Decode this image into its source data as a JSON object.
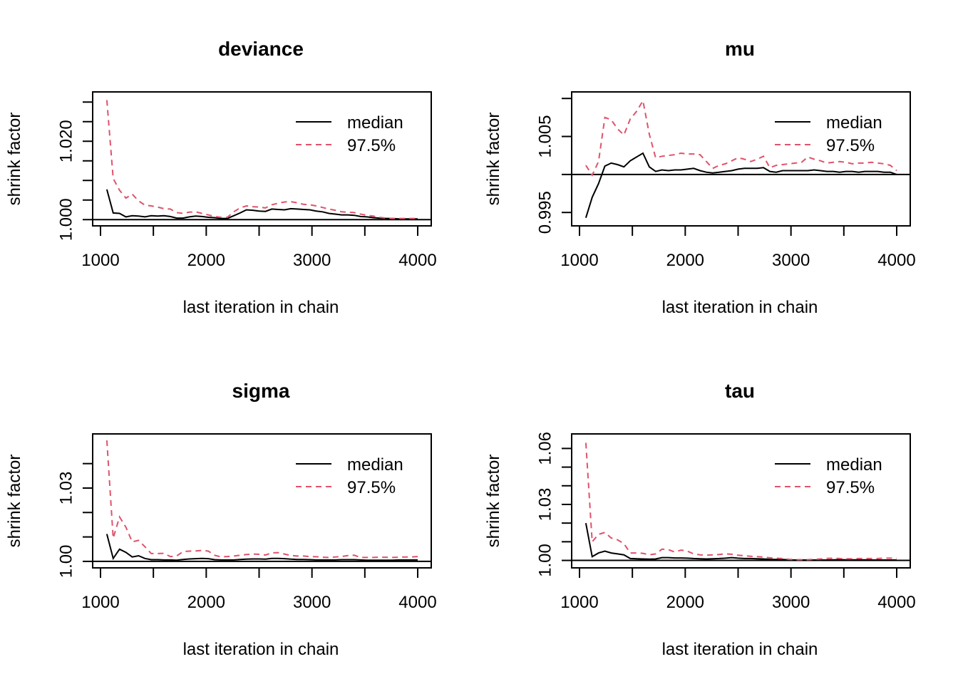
{
  "figure": {
    "xlabel": "last iteration in chain",
    "ylabel": "shrink factor",
    "legend_labels": [
      "median",
      "97.5%"
    ],
    "colors": {
      "median": "#000000",
      "upper": "#DF536B",
      "axis": "#000000"
    }
  },
  "chart_data": [
    {
      "type": "line",
      "title": "deviance",
      "xlabel": "last iteration in chain",
      "ylabel": "shrink factor",
      "legend": "top-right",
      "xlim": [
        1050,
        4000
      ],
      "ylim": [
        0.9995,
        1.0315
      ],
      "x_ticks": [
        1000,
        2000,
        3000,
        4000
      ],
      "x_tick_labels": [
        "1000",
        "2000",
        "3000",
        "4000"
      ],
      "y_ticks": [
        1.0,
        1.005,
        1.01,
        1.015,
        1.02,
        1.025,
        1.03
      ],
      "y_tick_labels": [
        "1.000",
        "",
        "",
        "",
        "1.020",
        "",
        ""
      ],
      "reference_line": 1.0,
      "x": [
        1060,
        1120,
        1180,
        1240,
        1300,
        1360,
        1420,
        1480,
        1540,
        1600,
        1660,
        1720,
        1780,
        1840,
        1900,
        1960,
        2020,
        2080,
        2140,
        2200,
        2260,
        2320,
        2380,
        2440,
        2500,
        2560,
        2620,
        2680,
        2740,
        2800,
        2860,
        2920,
        2980,
        3040,
        3100,
        3160,
        3220,
        3280,
        3340,
        3400,
        3460,
        3520,
        3580,
        3640,
        3700,
        3760,
        3820,
        3880,
        3940,
        4000
      ],
      "series": [
        {
          "name": "median",
          "style": "solid",
          "color": "#000000",
          "values": [
            1.0077,
            1.0017,
            1.0016,
            1.0007,
            1.001,
            1.0009,
            1.0007,
            1.001,
            1.0009,
            1.001,
            1.0008,
            1.0004,
            1.0004,
            1.0007,
            1.0009,
            1.0008,
            1.0006,
            1.0005,
            1.0003,
            1.0003,
            1.001,
            1.0017,
            1.0025,
            1.0024,
            1.0022,
            1.0021,
            1.0027,
            1.0026,
            1.0025,
            1.0028,
            1.0027,
            1.0026,
            1.0025,
            1.0022,
            1.002,
            1.0016,
            1.0014,
            1.0012,
            1.0012,
            1.0011,
            1.0008,
            1.0007,
            1.0005,
            1.0004,
            1.0003,
            1.0003,
            1.0002,
            1.0002,
            1.0002,
            1.0002
          ]
        },
        {
          "name": "97.5%",
          "style": "dashed",
          "color": "#DF536B",
          "values": [
            1.0305,
            1.0105,
            1.0075,
            1.0055,
            1.0065,
            1.0048,
            1.0037,
            1.0035,
            1.0032,
            1.0028,
            1.0027,
            1.0018,
            1.0016,
            1.0019,
            1.002,
            1.0016,
            1.0012,
            1.0008,
            1.0006,
            1.0006,
            1.002,
            1.003,
            1.0035,
            1.0033,
            1.0032,
            1.003,
            1.0038,
            1.0042,
            1.0045,
            1.0046,
            1.0043,
            1.0039,
            1.0038,
            1.0035,
            1.0031,
            1.0027,
            1.0024,
            1.002,
            1.0019,
            1.0018,
            1.0014,
            1.0011,
            1.0009,
            1.0006,
            1.0004,
            1.0003,
            1.0003,
            1.0003,
            1.0003,
            1.0003
          ]
        }
      ]
    },
    {
      "type": "line",
      "title": "mu",
      "xlabel": "last iteration in chain",
      "ylabel": "shrink factor",
      "legend": "top-right",
      "xlim": [
        1050,
        4000
      ],
      "ylim": [
        0.9938,
        1.0103
      ],
      "x_ticks": [
        1000,
        2000,
        3000,
        4000
      ],
      "x_tick_labels": [
        "1000",
        "2000",
        "3000",
        "4000"
      ],
      "y_ticks": [
        0.995,
        1.0,
        1.005,
        1.01
      ],
      "y_tick_labels": [
        "0.995",
        "",
        "1.005",
        ""
      ],
      "reference_line": 1.0,
      "x": [
        1060,
        1120,
        1180,
        1240,
        1300,
        1360,
        1420,
        1480,
        1540,
        1600,
        1660,
        1720,
        1780,
        1840,
        1900,
        1960,
        2020,
        2080,
        2140,
        2200,
        2260,
        2320,
        2380,
        2440,
        2500,
        2560,
        2620,
        2680,
        2740,
        2800,
        2860,
        2920,
        2980,
        3040,
        3100,
        3160,
        3220,
        3280,
        3340,
        3400,
        3460,
        3520,
        3580,
        3640,
        3700,
        3760,
        3820,
        3880,
        3940,
        4000
      ],
      "series": [
        {
          "name": "median",
          "style": "solid",
          "color": "#000000",
          "values": [
            0.9943,
            0.997,
            0.9988,
            1.0011,
            1.0015,
            1.0013,
            1.001,
            1.0018,
            1.0023,
            1.0028,
            1.001,
            1.0004,
            1.0006,
            1.0005,
            1.0006,
            1.0006,
            1.0007,
            1.0008,
            1.0005,
            1.0003,
            1.0002,
            1.0003,
            1.0004,
            1.0005,
            1.0007,
            1.0008,
            1.0008,
            1.0008,
            1.0009,
            1.0004,
            1.0003,
            1.0005,
            1.0005,
            1.0005,
            1.0005,
            1.0005,
            1.0006,
            1.0005,
            1.0004,
            1.0004,
            1.0003,
            1.0004,
            1.0004,
            1.0003,
            1.0004,
            1.0004,
            1.0004,
            1.0003,
            1.0003,
            1.0
          ]
        },
        {
          "name": "97.5%",
          "style": "dashed",
          "color": "#DF536B",
          "values": [
            1.0012,
            0.9999,
            1.0017,
            1.0075,
            1.0072,
            1.006,
            1.0052,
            1.0073,
            1.0083,
            1.0097,
            1.0053,
            1.0022,
            1.0024,
            1.0025,
            1.0026,
            1.0028,
            1.0027,
            1.0027,
            1.0026,
            1.0017,
            1.0008,
            1.0012,
            1.0014,
            1.0018,
            1.0022,
            1.002,
            1.0017,
            1.002,
            1.0024,
            1.0009,
            1.0012,
            1.0013,
            1.0014,
            1.0015,
            1.0016,
            1.0023,
            1.002,
            1.0018,
            1.0015,
            1.0016,
            1.0017,
            1.0016,
            1.0014,
            1.0015,
            1.0015,
            1.0016,
            1.0015,
            1.0014,
            1.0012,
            1.0005
          ]
        }
      ]
    },
    {
      "type": "line",
      "title": "sigma",
      "xlabel": "last iteration in chain",
      "ylabel": "shrink factor",
      "legend": "top-right",
      "xlim": [
        1050,
        4000
      ],
      "ylim": [
        0.9991,
        1.0504
      ],
      "x_ticks": [
        1000,
        2000,
        3000,
        4000
      ],
      "x_tick_labels": [
        "1000",
        "2000",
        "3000",
        "4000"
      ],
      "y_ticks": [
        1.0,
        1.01,
        1.02,
        1.03,
        1.04
      ],
      "y_tick_labels": [
        "1.00",
        "",
        "",
        "1.03",
        ""
      ],
      "reference_line": 1.0,
      "x": [
        1060,
        1120,
        1180,
        1240,
        1300,
        1360,
        1420,
        1480,
        1540,
        1600,
        1660,
        1720,
        1780,
        1840,
        1900,
        1960,
        2020,
        2080,
        2140,
        2200,
        2260,
        2320,
        2380,
        2440,
        2500,
        2560,
        2620,
        2680,
        2740,
        2800,
        2860,
        2920,
        2980,
        3040,
        3100,
        3160,
        3220,
        3280,
        3340,
        3400,
        3460,
        3520,
        3580,
        3640,
        3700,
        3760,
        3820,
        3880,
        3940,
        4000
      ],
      "series": [
        {
          "name": "median",
          "style": "solid",
          "color": "#000000",
          "values": [
            1.0112,
            1.0012,
            1.005,
            1.0037,
            1.0018,
            1.0023,
            1.0012,
            1.0007,
            1.0007,
            1.0006,
            1.0006,
            1.0005,
            1.0008,
            1.001,
            1.0011,
            1.0012,
            1.0011,
            1.0007,
            1.0006,
            1.0006,
            1.0006,
            1.0008,
            1.0009,
            1.001,
            1.001,
            1.0009,
            1.0012,
            1.0012,
            1.0011,
            1.0009,
            1.0008,
            1.0008,
            1.0007,
            1.0006,
            1.0006,
            1.0006,
            1.0006,
            1.0007,
            1.0007,
            1.0007,
            1.0006,
            1.0005,
            1.0005,
            1.0005,
            1.0005,
            1.0005,
            1.0006,
            1.0006,
            1.0006,
            1.0006
          ]
        },
        {
          "name": "97.5%",
          "style": "dashed",
          "color": "#DF536B",
          "values": [
            1.0495,
            1.0095,
            1.0182,
            1.014,
            1.008,
            1.0086,
            1.006,
            1.0032,
            1.0032,
            1.0033,
            1.002,
            1.0022,
            1.004,
            1.0042,
            1.0043,
            1.0045,
            1.0042,
            1.0025,
            1.0018,
            1.002,
            1.0022,
            1.0025,
            1.0028,
            1.003,
            1.0029,
            1.0026,
            1.0035,
            1.0036,
            1.003,
            1.0024,
            1.0022,
            1.0022,
            1.002,
            1.0019,
            1.0017,
            1.0016,
            1.0018,
            1.002,
            1.0024,
            1.0025,
            1.0016,
            1.0016,
            1.0016,
            1.0017,
            1.0017,
            1.0016,
            1.0017,
            1.0018,
            1.0018,
            1.002
          ]
        }
      ]
    },
    {
      "type": "line",
      "title": "tau",
      "xlabel": "last iteration in chain",
      "ylabel": "shrink factor",
      "legend": "top-right",
      "xlim": [
        1050,
        4000
      ],
      "ylim": [
        0.9983,
        1.0655
      ],
      "x_ticks": [
        1000,
        2000,
        3000,
        4000
      ],
      "x_tick_labels": [
        "1000",
        "2000",
        "3000",
        "4000"
      ],
      "y_ticks": [
        1.0,
        1.01,
        1.02,
        1.03,
        1.04,
        1.05,
        1.06
      ],
      "y_tick_labels": [
        "1.00",
        "",
        "",
        "1.03",
        "",
        "",
        "1.06"
      ],
      "reference_line": 1.0,
      "x": [
        1060,
        1120,
        1180,
        1240,
        1300,
        1360,
        1420,
        1480,
        1540,
        1600,
        1660,
        1720,
        1780,
        1840,
        1900,
        1960,
        2020,
        2080,
        2140,
        2200,
        2260,
        2320,
        2380,
        2440,
        2500,
        2560,
        2620,
        2680,
        2740,
        2800,
        2860,
        2920,
        2980,
        3040,
        3100,
        3160,
        3220,
        3280,
        3340,
        3400,
        3460,
        3520,
        3580,
        3640,
        3700,
        3760,
        3820,
        3880,
        3940,
        4000
      ],
      "series": [
        {
          "name": "median",
          "style": "solid",
          "color": "#000000",
          "values": [
            1.02,
            1.002,
            1.004,
            1.005,
            1.004,
            1.0035,
            1.003,
            1.001,
            1.0009,
            1.0008,
            1.0007,
            1.0008,
            1.0015,
            1.0015,
            1.0013,
            1.0013,
            1.0012,
            1.001,
            1.0009,
            1.0008,
            1.0009,
            1.001,
            1.0012,
            1.0015,
            1.0012,
            1.001,
            1.001,
            1.0009,
            1.0008,
            1.0006,
            1.0005,
            1.0005,
            1.0003,
            1.0002,
            1.0002,
            1.0002,
            1.0002,
            1.0002,
            1.0002,
            1.0003,
            1.0004,
            1.0003,
            1.0003,
            1.0003,
            1.0003,
            1.0002,
            1.0002,
            1.0002,
            1.0002,
            1.0002
          ]
        },
        {
          "name": "97.5%",
          "style": "dashed",
          "color": "#DF536B",
          "values": [
            1.063,
            1.01,
            1.014,
            1.015,
            1.012,
            1.011,
            1.009,
            1.004,
            1.004,
            1.0038,
            1.003,
            1.0035,
            1.006,
            1.0058,
            1.0045,
            1.0055,
            1.005,
            1.0035,
            1.003,
            1.0028,
            1.003,
            1.0032,
            1.0035,
            1.0033,
            1.0028,
            1.0025,
            1.0022,
            1.002,
            1.0018,
            1.0014,
            1.0012,
            1.001,
            1.0006,
            1.0004,
            1.0004,
            1.0004,
            1.0006,
            1.0008,
            1.0011,
            1.0012,
            1.001,
            1.0009,
            1.0009,
            1.001,
            1.001,
            1.001,
            1.001,
            1.0012,
            1.0012,
            1.0012
          ]
        }
      ]
    }
  ]
}
